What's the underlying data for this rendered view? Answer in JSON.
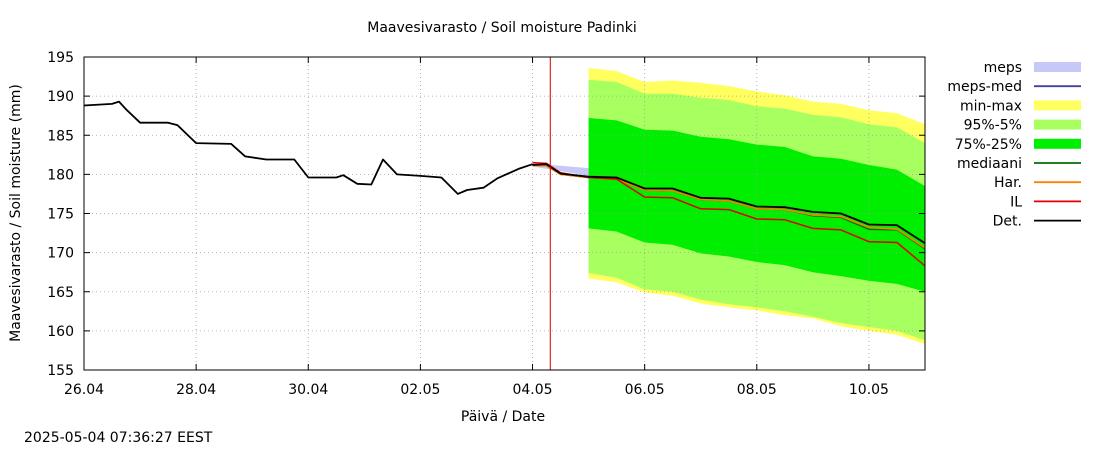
{
  "chart_data": {
    "type": "area",
    "title": "Maavesivarasto / Soil moisture   Padinki",
    "xlabel": "Päivä / Date",
    "ylabel": "Maavesivarasto / Soil moisture (mm)",
    "timestamp": "2025-05-04 07:36:27 EEST",
    "x_range": [
      "2025-04-26",
      "2025-05-11"
    ],
    "ylim": [
      155,
      195
    ],
    "grid": true,
    "legend_position": "right",
    "x_ticks": [
      {
        "date": "2025-04-26",
        "label": "26.04"
      },
      {
        "date": "2025-04-28",
        "label": "28.04"
      },
      {
        "date": "2025-04-30",
        "label": "30.04"
      },
      {
        "date": "2025-05-02",
        "label": "02.05"
      },
      {
        "date": "2025-05-04",
        "label": "04.05"
      },
      {
        "date": "2025-05-06",
        "label": "06.05"
      },
      {
        "date": "2025-05-08",
        "label": "08.05"
      },
      {
        "date": "2025-05-10",
        "label": "10.05"
      }
    ],
    "y_ticks": [
      155,
      160,
      165,
      170,
      175,
      180,
      185,
      190,
      195
    ],
    "current_time_marker": "2025-05-04T07:36",
    "legend": [
      {
        "name": "meps",
        "kind": "box",
        "color": "#c8c8f8"
      },
      {
        "name": "meps-med",
        "kind": "line",
        "color": "#4040a0"
      },
      {
        "name": "min-max",
        "kind": "box",
        "color": "#ffff60"
      },
      {
        "name": "95%-5%",
        "kind": "box",
        "color": "#a8ff60"
      },
      {
        "name": "75%-25%",
        "kind": "box",
        "color": "#00ee00"
      },
      {
        "name": "mediaani",
        "kind": "line",
        "color": "#007000"
      },
      {
        "name": "Har.",
        "kind": "line",
        "color": "#ff8000"
      },
      {
        "name": "IL",
        "kind": "line",
        "color": "#e00000"
      },
      {
        "name": "Det.",
        "kind": "line",
        "color": "#000000"
      }
    ],
    "series": {
      "observed": [
        [
          "2025-04-26T00:00",
          188.8
        ],
        [
          "2025-04-26T12:00",
          189.0
        ],
        [
          "2025-04-26T15:00",
          189.3
        ],
        [
          "2025-04-26T18:00",
          188.3
        ],
        [
          "2025-04-27T00:00",
          186.6
        ],
        [
          "2025-04-27T12:00",
          186.6
        ],
        [
          "2025-04-27T16:00",
          186.3
        ],
        [
          "2025-04-28T00:00",
          184.0
        ],
        [
          "2025-04-28T15:00",
          183.9
        ],
        [
          "2025-04-28T21:00",
          182.3
        ],
        [
          "2025-04-29T06:00",
          181.9
        ],
        [
          "2025-04-29T18:00",
          181.9
        ],
        [
          "2025-04-30T00:00",
          179.6
        ],
        [
          "2025-04-30T12:00",
          179.6
        ],
        [
          "2025-04-30T15:00",
          179.9
        ],
        [
          "2025-04-30T21:00",
          178.8
        ],
        [
          "2025-05-01T03:00",
          178.7
        ],
        [
          "2025-05-01T08:00",
          181.9
        ],
        [
          "2025-05-01T14:00",
          180.0
        ],
        [
          "2025-05-02T00:00",
          179.8
        ],
        [
          "2025-05-02T09:00",
          179.6
        ],
        [
          "2025-05-02T16:00",
          177.5
        ],
        [
          "2025-05-02T20:00",
          178.0
        ],
        [
          "2025-05-03T03:00",
          178.3
        ],
        [
          "2025-05-03T09:00",
          179.5
        ],
        [
          "2025-05-03T18:00",
          180.7
        ],
        [
          "2025-05-04T00:00",
          181.3
        ]
      ],
      "forecast_x": [
        "2025-05-04T00:00",
        "2025-05-04T06:00",
        "2025-05-04T12:00",
        "2025-05-05T00:00",
        "2025-05-05T12:00",
        "2025-05-06T00:00",
        "2025-05-06T12:00",
        "2025-05-07T00:00",
        "2025-05-07T12:00",
        "2025-05-08T00:00",
        "2025-05-08T12:00",
        "2025-05-09T00:00",
        "2025-05-09T12:00",
        "2025-05-10T00:00",
        "2025-05-10T12:00",
        "2025-05-11T00:00"
      ],
      "det": [
        181.2,
        181.3,
        180.1,
        179.7,
        179.6,
        178.2,
        178.2,
        177.0,
        176.9,
        175.9,
        175.8,
        175.2,
        175.0,
        173.6,
        173.5,
        171.2
      ],
      "harmonie": [
        181.1,
        181.1,
        180.0,
        179.6,
        179.4,
        178.0,
        177.9,
        176.8,
        176.6,
        175.6,
        175.5,
        174.8,
        174.6,
        173.2,
        173.0,
        170.6
      ],
      "median": [
        181.1,
        181.1,
        180.0,
        179.6,
        179.4,
        178.0,
        177.9,
        176.8,
        176.6,
        175.6,
        175.5,
        174.7,
        174.5,
        173.0,
        172.9,
        170.5
      ],
      "il": [
        181.5,
        181.4,
        180.2,
        179.6,
        179.4,
        177.1,
        177.0,
        175.6,
        175.5,
        174.3,
        174.2,
        173.1,
        172.9,
        171.4,
        171.3,
        168.3
      ],
      "meps_band": {
        "x": [
          "2025-05-04T00:00",
          "2025-05-05T00:00"
        ],
        "low": [
          181.0,
          179.8
        ],
        "high": [
          181.4,
          180.8
        ]
      },
      "band_x": [
        "2025-05-05T00:00",
        "2025-05-05T12:00",
        "2025-05-06T00:00",
        "2025-05-06T12:00",
        "2025-05-07T00:00",
        "2025-05-07T12:00",
        "2025-05-08T00:00",
        "2025-05-08T12:00",
        "2025-05-09T00:00",
        "2025-05-09T12:00",
        "2025-05-10T00:00",
        "2025-05-10T12:00",
        "2025-05-11T00:00"
      ],
      "min": [
        166.7,
        166.2,
        164.9,
        164.5,
        163.5,
        163.0,
        162.6,
        162.0,
        161.6,
        160.6,
        160.0,
        159.5,
        158.3
      ],
      "p5": [
        167.4,
        166.8,
        165.3,
        165.0,
        164.0,
        163.4,
        163.0,
        162.5,
        161.8,
        161.0,
        160.5,
        160.0,
        158.8
      ],
      "p25": [
        173.1,
        172.7,
        171.3,
        171.0,
        169.9,
        169.5,
        168.8,
        168.4,
        167.5,
        167.0,
        166.4,
        166.0,
        165.0
      ],
      "p75": [
        187.2,
        186.9,
        185.7,
        185.6,
        184.8,
        184.5,
        183.8,
        183.5,
        182.3,
        182.0,
        181.2,
        180.6,
        178.5
      ],
      "p95": [
        192.1,
        191.8,
        190.3,
        190.3,
        189.8,
        189.5,
        188.7,
        188.4,
        187.6,
        187.3,
        186.4,
        186.0,
        184.0
      ],
      "max": [
        193.6,
        193.2,
        191.8,
        192.0,
        191.7,
        191.3,
        190.6,
        190.1,
        189.3,
        189.0,
        188.2,
        187.8,
        186.4
      ]
    }
  }
}
